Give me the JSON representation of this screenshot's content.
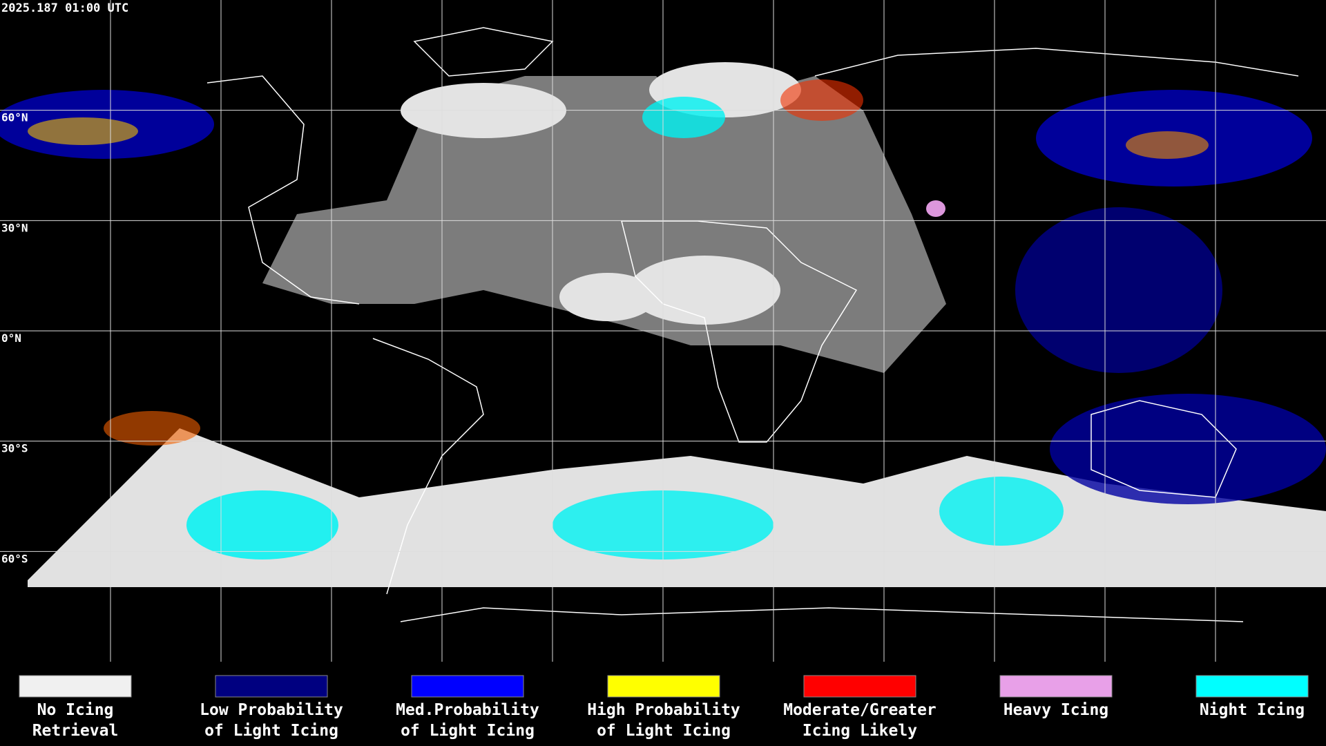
{
  "header": {
    "timestamp": "2025.187 01:00 UTC"
  },
  "map": {
    "latitude_labels": [
      "60°N",
      "30°N",
      "0°N",
      "30°S",
      "60°S"
    ]
  },
  "legend": {
    "items": [
      {
        "color": "#f0f0f0",
        "lines": [
          "No Icing",
          "Retrieval"
        ]
      },
      {
        "color": "#000080",
        "lines": [
          "Low Probability",
          "of Light Icing"
        ]
      },
      {
        "color": "#0000ff",
        "lines": [
          "Med.Probability",
          "of Light Icing"
        ]
      },
      {
        "color": "#ffff00",
        "lines": [
          "High Probability",
          "of Light Icing"
        ]
      },
      {
        "color": "#ff0000",
        "lines": [
          "Moderate/Greater",
          "Icing Likely"
        ]
      },
      {
        "color": "#e8a0e8",
        "lines": [
          "Heavy Icing"
        ]
      },
      {
        "color": "#00ffff",
        "lines": [
          "Night Icing"
        ]
      }
    ]
  }
}
